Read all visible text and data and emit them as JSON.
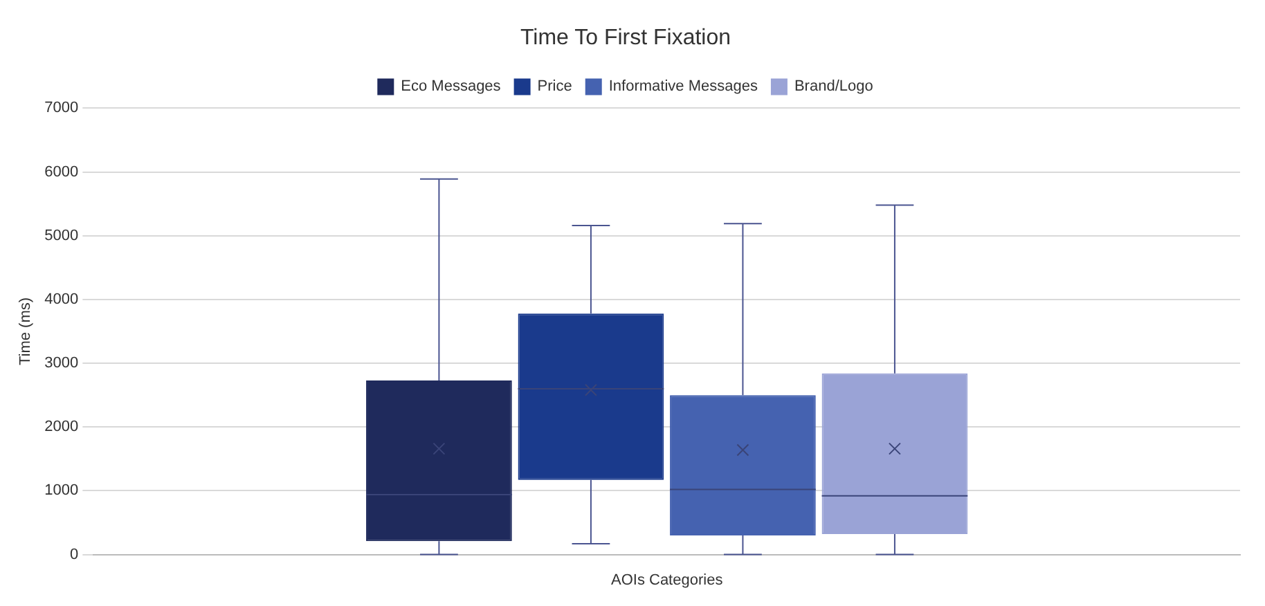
{
  "chart_data": {
    "type": "box",
    "title": "Time To First Fixation",
    "xlabel": "AOIs Categories",
    "ylabel": "Time (ms)",
    "categories": [
      null
    ],
    "series": [
      {
        "name": "Eco Messages",
        "color": "#1f2a5c",
        "boxes": [
          {
            "low": 0,
            "q1": 210,
            "median": 940,
            "q3": 2730,
            "high": 5890,
            "mean": 1660
          }
        ]
      },
      {
        "name": "Price",
        "color": "#1a3a8c",
        "boxes": [
          {
            "low": 170,
            "q1": 1170,
            "median": 2600,
            "q3": 3780,
            "high": 5160,
            "mean": 2580
          }
        ]
      },
      {
        "name": "Informative Messages",
        "color": "#4562b0",
        "boxes": [
          {
            "low": 0,
            "q1": 300,
            "median": 1020,
            "q3": 2500,
            "high": 5190,
            "mean": 1640
          }
        ]
      },
      {
        "name": "Brand/Logo",
        "color": "#9aa3d6",
        "boxes": [
          {
            "low": 0,
            "q1": 320,
            "median": 920,
            "q3": 2840,
            "high": 5480,
            "mean": 1660
          }
        ]
      }
    ],
    "ylim": [
      0,
      7000
    ],
    "yticks": [
      0,
      1000,
      2000,
      3000,
      4000,
      5000,
      6000,
      7000
    ],
    "grid": "y",
    "legend": "top"
  }
}
